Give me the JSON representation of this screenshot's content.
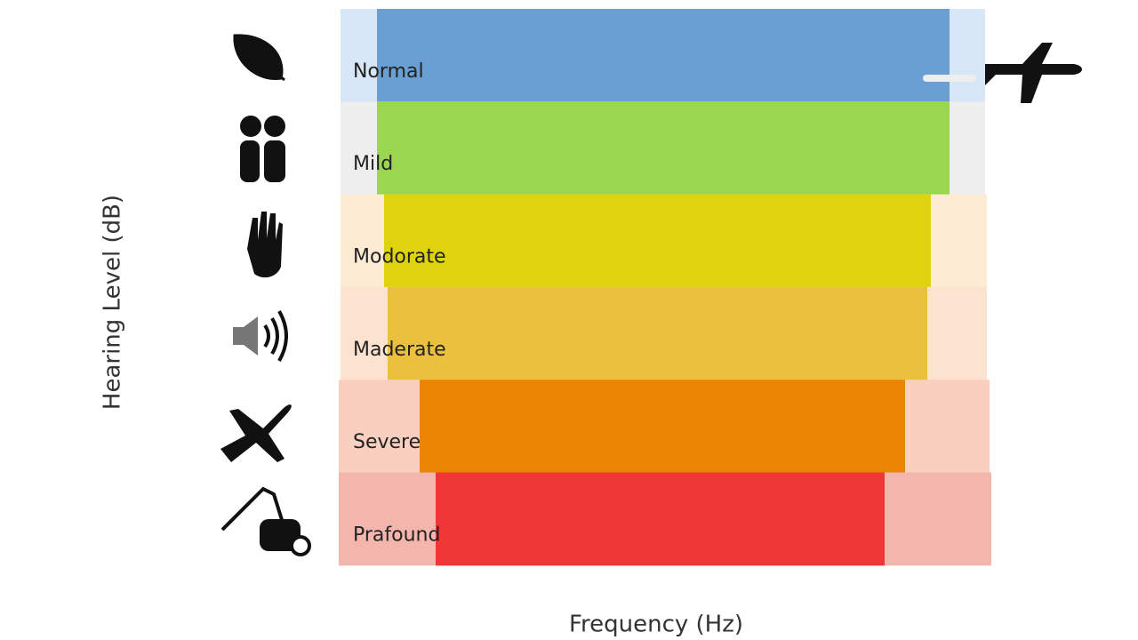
{
  "axes": {
    "y_label": "Hearing Level (dB)",
    "x_label": "Frequency (Hz)"
  },
  "bands": [
    {
      "label": "Normal",
      "color": "#6a9fd4",
      "background": "#d8e7f7"
    },
    {
      "label": "Mild",
      "color": "#9bd651",
      "background": "#eeeeee"
    },
    {
      "label": "Modorate",
      "color": "#dfd30e",
      "background": "#fdebd4"
    },
    {
      "label": "Maderate",
      "color": "#ecc03f",
      "background": "#fce3cf"
    },
    {
      "label": "Severe",
      "color": "#e98500",
      "background": "#f9cfc0"
    },
    {
      "label": "Prafound",
      "color": "#ef3737",
      "background": "#f4b5ad"
    }
  ]
}
